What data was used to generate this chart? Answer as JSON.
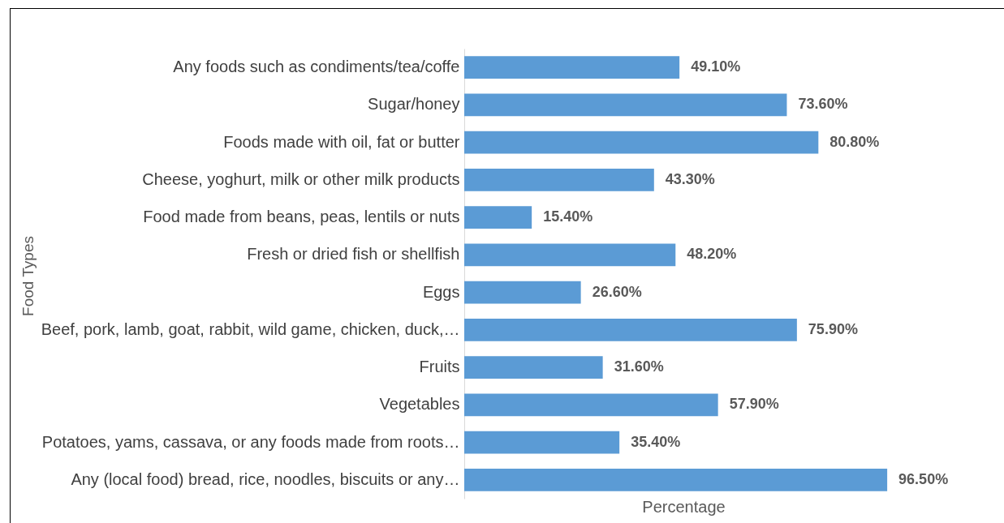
{
  "chart_data": {
    "type": "bar",
    "orientation": "horizontal",
    "xlabel": "Percentage",
    "ylabel": "Food Types",
    "categories": [
      "Any foods such as condiments/tea/coffe",
      "Sugar/honey",
      "Foods made with oil, fat or butter",
      "Cheese, yoghurt, milk or other milk products",
      "Food made from beans, peas, lentils or nuts",
      "Fresh or dried fish or shellfish ",
      "Eggs",
      "Beef, pork, lamb, goat, rabbit, wild game, chicken, duck,…",
      "Fruits",
      "Vegetables",
      "Potatoes, yams, cassava, or any foods made from roots…",
      "Any (local food) bread, rice, noodles, biscuits or any…"
    ],
    "values": [
      49.1,
      73.6,
      80.8,
      43.3,
      15.4,
      48.2,
      26.6,
      75.9,
      31.6,
      57.9,
      35.4,
      96.5
    ],
    "value_labels": [
      "49.10%",
      "73.60%",
      "80.80%",
      "43.30%",
      "15.40%",
      "48.20%",
      "26.60%",
      "75.90%",
      "31.60%",
      "57.90%",
      "35.40%",
      "96.50%"
    ],
    "color": "#5b9bd5",
    "tick_labels": "y"
  }
}
